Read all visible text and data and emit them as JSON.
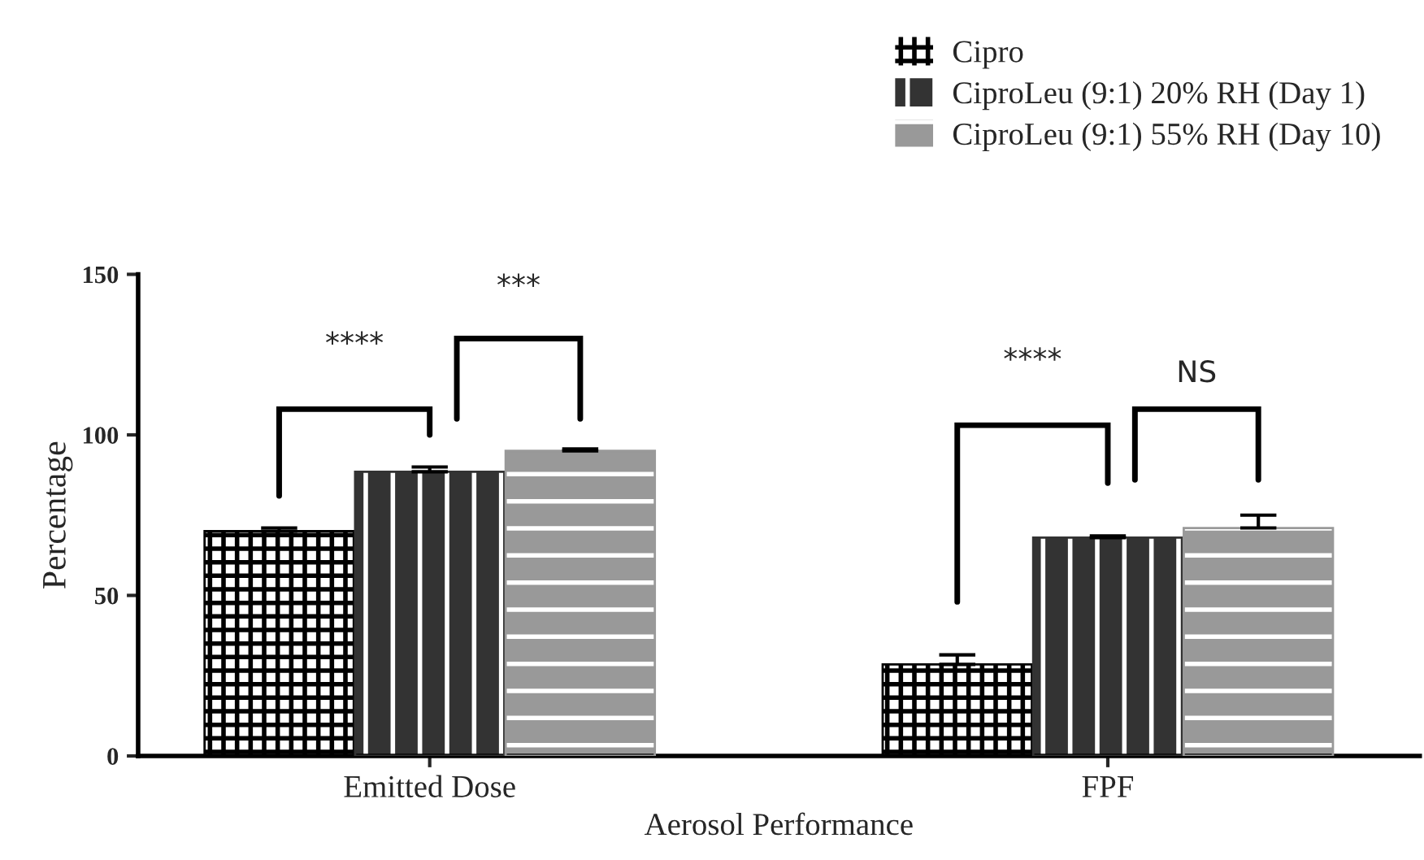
{
  "chart_data": {
    "type": "bar",
    "categories": [
      "Emitted Dose",
      "FPF"
    ],
    "series": [
      {
        "name": "Cipro",
        "color": "#ffffff",
        "values": [
          70,
          28.5
        ],
        "errors": [
          1,
          3
        ]
      },
      {
        "name": "CiproLeu (9:1) 20% RH (Day 1)",
        "color": "#333333",
        "values": [
          88.5,
          68
        ],
        "errors": [
          1.5,
          0.5
        ]
      },
      {
        "name": "CiproLeu (9:1) 55% RH (Day 10)",
        "color": "#999999",
        "values": [
          95,
          71
        ],
        "errors": [
          0.6,
          4
        ]
      }
    ],
    "xlabel": "Aerosol Performance",
    "ylabel": "Percentage",
    "ylim": [
      0,
      150
    ],
    "yticks": [
      0,
      50,
      100,
      150
    ],
    "annotations": [
      "****",
      "***",
      "****",
      "NS"
    ],
    "grid": false,
    "legend": "top right"
  }
}
